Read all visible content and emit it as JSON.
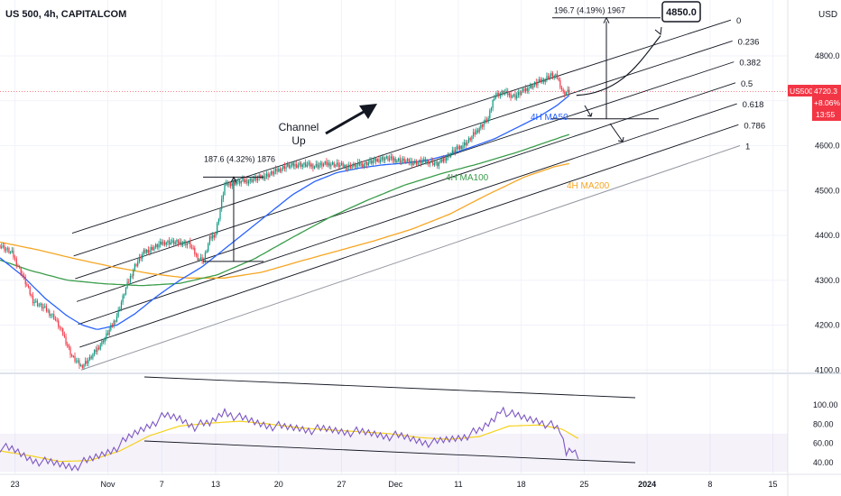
{
  "header": {
    "symbol_line": "US 500, 4h, CAPITALCOM"
  },
  "axis": {
    "currency": "USD",
    "price_ticks": [
      4800,
      4700,
      4600,
      4500,
      4400,
      4300,
      4200,
      4100
    ],
    "price_tick_labels": [
      "4800.0",
      "4700.0",
      "4600.0",
      "4500.0",
      "4400.0",
      "4300.0",
      "4200.0",
      "4100.0"
    ],
    "rsi_ticks": [
      100,
      80,
      60,
      40
    ],
    "rsi_tick_labels": [
      "100.00",
      "80.00",
      "60.00",
      "40.00"
    ],
    "time_labels": [
      "23",
      "Nov",
      "7",
      "13",
      "20",
      "27",
      "Dec",
      "11",
      "18",
      "25",
      "2024",
      "8",
      "15"
    ],
    "time_label_bars": [
      10,
      72,
      108,
      144,
      186,
      228,
      264,
      306,
      348,
      390,
      432,
      474,
      516
    ]
  },
  "price_badge": {
    "symbol": "US500",
    "price": "4720.3",
    "change": "+8.06%",
    "countdown": "13:55",
    "color": "#f23645"
  },
  "annotations": {
    "channel_label_line1": "Channel",
    "channel_label_line2": "Up",
    "measure1": "187.6 (4.32%) 1876",
    "measure2": "196.7 (4.19%) 1967",
    "target": "4850.0",
    "ma50": "4H MA50",
    "ma100": "4H MA100",
    "ma200": "4H MA200"
  },
  "fib_levels": [
    {
      "label": "0",
      "offset": 230
    },
    {
      "label": "0.236",
      "offset": 171
    },
    {
      "label": "0.382",
      "offset": 134
    },
    {
      "label": "0.5",
      "offset": 105
    },
    {
      "label": "0.618",
      "offset": 75
    },
    {
      "label": "0.786",
      "offset": 34
    },
    {
      "label": "1",
      "offset": -19
    }
  ],
  "colors": {
    "up": "#089981",
    "down": "#f23645",
    "ma50": "#2962ff",
    "ma100": "#3a9d4a",
    "ma200": "#f6a623",
    "rsi": "#7e57c2",
    "rsi_ma": "#f5d21a",
    "channel": "#131722",
    "channel_lower": "#9598a1"
  },
  "chart_data": {
    "type": "candlestick",
    "title": "US 500, 4h, CAPITALCOM",
    "ylim": [
      4080,
      4880
    ],
    "rsi_ylim": [
      30,
      110
    ],
    "bar_count": 415,
    "close_key": [
      [
        0,
        4378
      ],
      [
        8,
        4360
      ],
      [
        14,
        4318
      ],
      [
        22,
        4255
      ],
      [
        30,
        4236
      ],
      [
        36,
        4218
      ],
      [
        42,
        4180
      ],
      [
        48,
        4130
      ],
      [
        54,
        4108
      ],
      [
        60,
        4125
      ],
      [
        66,
        4152
      ],
      [
        72,
        4182
      ],
      [
        78,
        4220
      ],
      [
        84,
        4282
      ],
      [
        90,
        4332
      ],
      [
        96,
        4362
      ],
      [
        102,
        4372
      ],
      [
        110,
        4385
      ],
      [
        118,
        4384
      ],
      [
        126,
        4382
      ],
      [
        132,
        4350
      ],
      [
        136,
        4345
      ],
      [
        140,
        4392
      ],
      [
        144,
        4405
      ],
      [
        150,
        4512
      ],
      [
        156,
        4518
      ],
      [
        162,
        4520
      ],
      [
        170,
        4525
      ],
      [
        180,
        4536
      ],
      [
        190,
        4553
      ],
      [
        200,
        4558
      ],
      [
        210,
        4555
      ],
      [
        220,
        4560
      ],
      [
        232,
        4553
      ],
      [
        244,
        4560
      ],
      [
        256,
        4572
      ],
      [
        266,
        4568
      ],
      [
        276,
        4562
      ],
      [
        286,
        4565
      ],
      [
        292,
        4558
      ],
      [
        298,
        4575
      ],
      [
        304,
        4590
      ],
      [
        312,
        4608
      ],
      [
        320,
        4640
      ],
      [
        326,
        4660
      ],
      [
        330,
        4712
      ],
      [
        336,
        4718
      ],
      [
        344,
        4710
      ],
      [
        352,
        4728
      ],
      [
        360,
        4742
      ],
      [
        368,
        4757
      ],
      [
        372,
        4752
      ],
      [
        376,
        4718
      ],
      [
        380,
        4720.3
      ]
    ],
    "ma50_key": [
      [
        0,
        4350
      ],
      [
        15,
        4310
      ],
      [
        30,
        4260
      ],
      [
        45,
        4220
      ],
      [
        55,
        4200
      ],
      [
        65,
        4190
      ],
      [
        78,
        4200
      ],
      [
        90,
        4225
      ],
      [
        105,
        4265
      ],
      [
        120,
        4300
      ],
      [
        135,
        4330
      ],
      [
        150,
        4370
      ],
      [
        165,
        4410
      ],
      [
        180,
        4450
      ],
      [
        195,
        4490
      ],
      [
        210,
        4520
      ],
      [
        225,
        4540
      ],
      [
        240,
        4550
      ],
      [
        255,
        4557
      ],
      [
        270,
        4561
      ],
      [
        285,
        4567
      ],
      [
        300,
        4580
      ],
      [
        315,
        4597
      ],
      [
        330,
        4615
      ],
      [
        345,
        4640
      ],
      [
        360,
        4665
      ],
      [
        372,
        4690
      ],
      [
        380,
        4712
      ]
    ],
    "ma100_key": [
      [
        0,
        4345
      ],
      [
        20,
        4322
      ],
      [
        45,
        4300
      ],
      [
        70,
        4292
      ],
      [
        95,
        4288
      ],
      [
        120,
        4293
      ],
      [
        145,
        4312
      ],
      [
        170,
        4348
      ],
      [
        195,
        4395
      ],
      [
        220,
        4440
      ],
      [
        245,
        4478
      ],
      [
        270,
        4512
      ],
      [
        295,
        4538
      ],
      [
        320,
        4560
      ],
      [
        345,
        4585
      ],
      [
        365,
        4608
      ],
      [
        380,
        4625
      ]
    ],
    "ma200_key": [
      [
        0,
        4385
      ],
      [
        25,
        4368
      ],
      [
        50,
        4348
      ],
      [
        75,
        4330
      ],
      [
        100,
        4315
      ],
      [
        125,
        4305
      ],
      [
        150,
        4305
      ],
      [
        175,
        4318
      ],
      [
        200,
        4342
      ],
      [
        225,
        4365
      ],
      [
        250,
        4388
      ],
      [
        275,
        4414
      ],
      [
        300,
        4447
      ],
      [
        325,
        4490
      ],
      [
        350,
        4530
      ],
      [
        370,
        4553
      ],
      [
        380,
        4560
      ]
    ],
    "channel": {
      "line_upper": [
        [
          80,
          4405
        ],
        [
          810,
          4880
        ]
      ],
      "line_lower": [
        [
          90,
          4100
        ],
        [
          820,
          4600
        ]
      ]
    },
    "projection_target": 4850.0,
    "measure1": {
      "start": 4342,
      "end": 4530,
      "change": 187.6,
      "percent": 4.32,
      "ticks": 1876
    },
    "measure2": {
      "start": 4688,
      "end": 4885,
      "change": 196.7,
      "percent": 4.19,
      "ticks": 1967
    },
    "rsi_key": [
      [
        0,
        56
      ],
      [
        10,
        52
      ],
      [
        20,
        44
      ],
      [
        30,
        40
      ],
      [
        40,
        38
      ],
      [
        50,
        36
      ],
      [
        60,
        42
      ],
      [
        70,
        50
      ],
      [
        80,
        58
      ],
      [
        90,
        70
      ],
      [
        100,
        80
      ],
      [
        110,
        88
      ],
      [
        120,
        86
      ],
      [
        130,
        78
      ],
      [
        140,
        80
      ],
      [
        150,
        94
      ],
      [
        160,
        86
      ],
      [
        170,
        82
      ],
      [
        180,
        79
      ],
      [
        190,
        76
      ],
      [
        200,
        76
      ],
      [
        210,
        74
      ],
      [
        220,
        74
      ],
      [
        230,
        73
      ],
      [
        240,
        71
      ],
      [
        250,
        70
      ],
      [
        260,
        68
      ],
      [
        270,
        66
      ],
      [
        280,
        63
      ],
      [
        290,
        60
      ],
      [
        300,
        64
      ],
      [
        310,
        68
      ],
      [
        320,
        72
      ],
      [
        330,
        86
      ],
      [
        335,
        98
      ],
      [
        340,
        90
      ],
      [
        350,
        86
      ],
      [
        360,
        84
      ],
      [
        368,
        78
      ],
      [
        374,
        72
      ],
      [
        378,
        50
      ],
      [
        382,
        54
      ],
      [
        386,
        48
      ]
    ],
    "rsi_ma_key": [
      [
        0,
        52
      ],
      [
        20,
        47
      ],
      [
        40,
        41
      ],
      [
        60,
        42
      ],
      [
        80,
        52
      ],
      [
        100,
        68
      ],
      [
        120,
        78
      ],
      [
        140,
        81
      ],
      [
        160,
        83
      ],
      [
        180,
        80
      ],
      [
        200,
        76
      ],
      [
        220,
        74
      ],
      [
        240,
        72
      ],
      [
        260,
        70
      ],
      [
        280,
        66
      ],
      [
        300,
        64
      ],
      [
        320,
        67
      ],
      [
        340,
        78
      ],
      [
        360,
        79
      ],
      [
        375,
        75
      ],
      [
        386,
        65
      ]
    ]
  }
}
